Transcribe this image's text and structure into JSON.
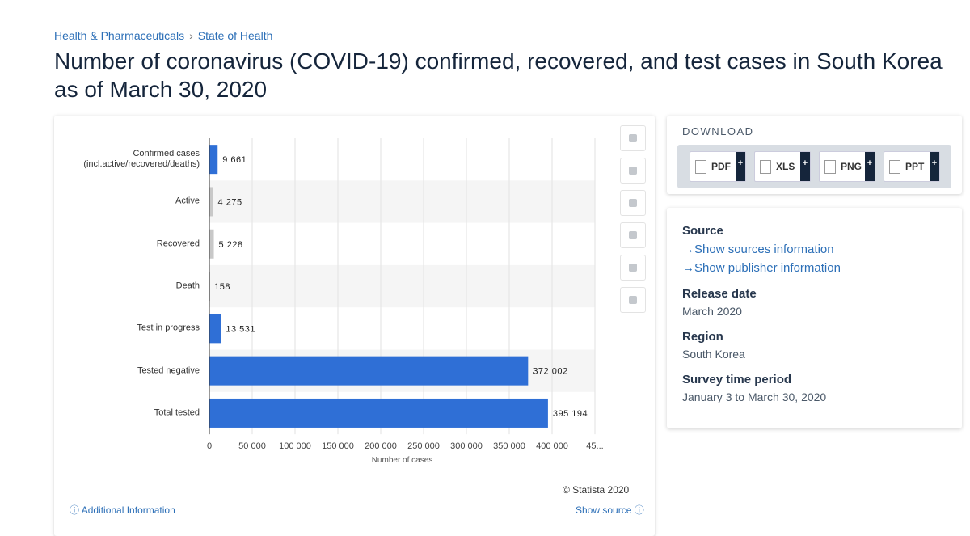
{
  "breadcrumb": [
    "Health & Pharmaceuticals",
    "State of Health"
  ],
  "separator": "›",
  "title": "Number of coronavirus (COVID-19) confirmed, recovered, and test cases in South Korea as of March 30, 2020",
  "chart_data": {
    "type": "bar",
    "orientation": "horizontal",
    "categories": [
      "Confirmed cases\n(incl.active/recovered/deaths)",
      "Active",
      "Recovered",
      "Death",
      "Test in progress",
      "Tested negative",
      "Total tested"
    ],
    "values": [
      9661,
      4275,
      5228,
      158,
      13531,
      372002,
      395194
    ],
    "value_labels": [
      "9 661",
      "4 275",
      "5 228",
      "158",
      "13 531",
      "372 002",
      "395 194"
    ],
    "colors": [
      "#2f6fd6",
      "#c8c8c8",
      "#c8c8c8",
      "#c8c8c8",
      "#2f6fd6",
      "#2f6fd6",
      "#2f6fd6"
    ],
    "xlim": [
      0,
      450000
    ],
    "xticks": [
      0,
      {
        "value": 50000,
        "label": "50 000"
      },
      {
        "value": 100000,
        "label": "100 000"
      },
      {
        "value": 150000,
        "label": "150 000"
      },
      {
        "value": 200000,
        "label": "200 000"
      },
      {
        "value": 250000,
        "label": "250 000"
      },
      {
        "value": 300000,
        "label": "300 000"
      },
      {
        "value": 350000,
        "label": "350 000"
      },
      {
        "value": 400000,
        "label": "400 000"
      },
      {
        "value": 450000,
        "label": "45..."
      }
    ],
    "x_label": "Number of cases",
    "grid": true
  },
  "copyright": "© Statista 2020",
  "footer": {
    "left": "Additional Information",
    "right": "Show source"
  },
  "download": {
    "heading": "DOWNLOAD",
    "buttons": [
      {
        "label": "PDF",
        "action": "+"
      },
      {
        "label": "XLS",
        "action": "+"
      },
      {
        "label": "PNG",
        "action": "+"
      },
      {
        "label": "PPT",
        "action": "+"
      }
    ]
  },
  "info": {
    "source_heading": "Source",
    "links": [
      "Show sources information",
      "Show publisher information"
    ],
    "items": [
      {
        "heading": "Release date",
        "text": "March 2020"
      },
      {
        "heading": "Region",
        "text": "South Korea"
      },
      {
        "heading": "Survey time period",
        "text": "January 3 to March 30, 2020"
      }
    ]
  }
}
